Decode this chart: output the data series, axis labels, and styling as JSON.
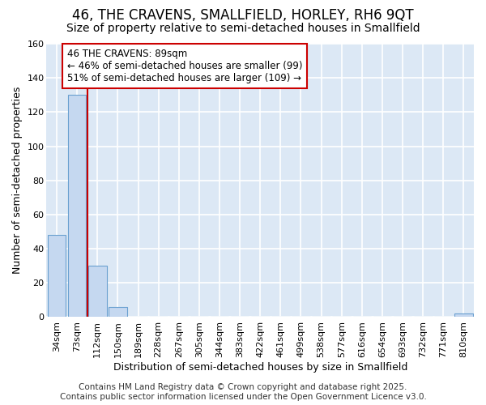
{
  "title_line1": "46, THE CRAVENS, SMALLFIELD, HORLEY, RH6 9QT",
  "title_line2": "Size of property relative to semi-detached houses in Smallfield",
  "xlabel": "Distribution of semi-detached houses by size in Smallfield",
  "ylabel": "Number of semi-detached properties",
  "bar_labels": [
    "34sqm",
    "73sqm",
    "112sqm",
    "150sqm",
    "189sqm",
    "228sqm",
    "267sqm",
    "305sqm",
    "344sqm",
    "383sqm",
    "422sqm",
    "461sqm",
    "499sqm",
    "538sqm",
    "577sqm",
    "616sqm",
    "654sqm",
    "693sqm",
    "732sqm",
    "771sqm",
    "810sqm"
  ],
  "bar_values": [
    48,
    130,
    30,
    6,
    0,
    0,
    0,
    0,
    0,
    0,
    0,
    0,
    0,
    0,
    0,
    0,
    0,
    0,
    0,
    0,
    2
  ],
  "bar_color": "#c5d8f0",
  "bar_edge_color": "#6aa0d0",
  "ylim": [
    0,
    160
  ],
  "yticks": [
    0,
    20,
    40,
    60,
    80,
    100,
    120,
    140,
    160
  ],
  "vline_x": 1.5,
  "annotation_text": "46 THE CRAVENS: 89sqm\n← 46% of semi-detached houses are smaller (99)\n51% of semi-detached houses are larger (109) →",
  "annotation_box_color": "#ffffff",
  "annotation_box_edgecolor": "#cc0000",
  "footer_line1": "Contains HM Land Registry data © Crown copyright and database right 2025.",
  "footer_line2": "Contains public sector information licensed under the Open Government Licence v3.0.",
  "fig_background_color": "#ffffff",
  "plot_background_color": "#dce8f5",
  "grid_color": "#ffffff",
  "vline_color": "#cc0000",
  "title_fontsize": 12,
  "subtitle_fontsize": 10,
  "tick_fontsize": 8,
  "ylabel_fontsize": 9,
  "xlabel_fontsize": 9,
  "footer_fontsize": 7.5,
  "annotation_fontsize": 8.5
}
